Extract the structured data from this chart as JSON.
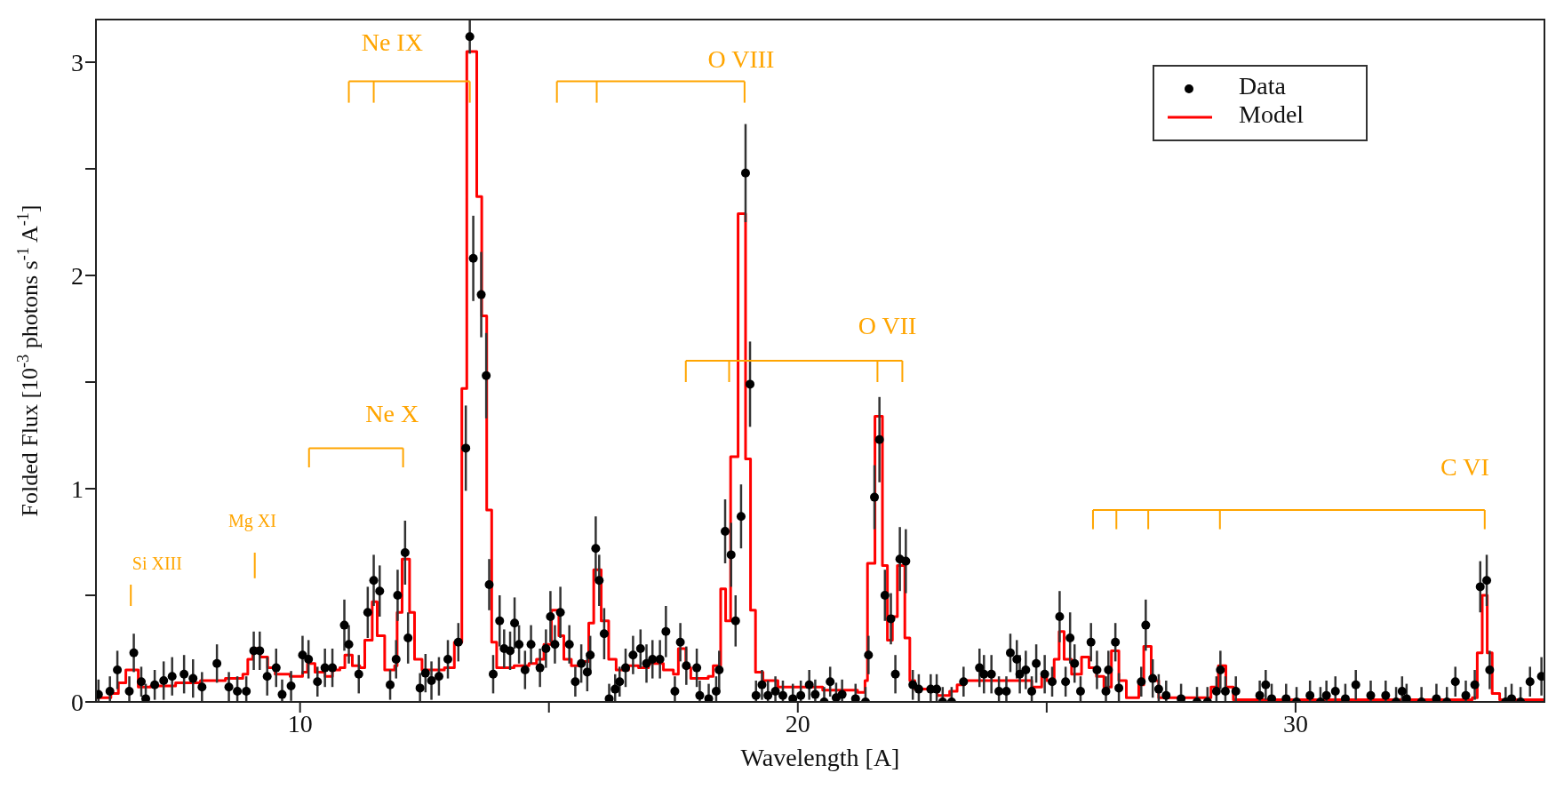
{
  "chart_data": {
    "type": "scatter",
    "xlabel": "Wavelength [A]",
    "ylabel": "Folded Flux [10$^{-3}$ photons s$^{-1}$ A$^{-1}$]",
    "xlim": [
      5.9,
      35
    ],
    "xticks": [
      10,
      {
        "value": 15,
        "label": null
      },
      20,
      {
        "value": 25,
        "label": null
      },
      30
    ],
    "ylim": [
      0,
      3.2
    ],
    "yticks": [
      0,
      {
        "value": 0.5,
        "label": null
      },
      1,
      {
        "value": 1.5,
        "label": null
      },
      2,
      {
        "value": 2.5,
        "label": null
      },
      3
    ],
    "legend": "top right",
    "annotations": [
      "Si XIII",
      "Mg XI",
      "Ne X",
      {
        "text": "Ne IX",
        "x": 13.41,
        "y": 2.91
      },
      "O VIII",
      "O VII",
      "C VI"
    ],
    "series": [
      {
        "name": "Data",
        "color": "#000000",
        "marker": "circle",
        "x": [
          5.95,
          6.18,
          6.33,
          6.57,
          6.66,
          6.81,
          6.9,
          7.08,
          7.26,
          7.43,
          7.67,
          7.85,
          8.03,
          8.33,
          8.57,
          8.74,
          8.92,
          9.07,
          9.19,
          9.34,
          9.52,
          9.64,
          9.82,
          10.05,
          10.17,
          10.35,
          10.5,
          10.65,
          10.89,
          10.98,
          11.18,
          11.36,
          11.48,
          11.6,
          11.81,
          11.93,
          11.96,
          12.11,
          12.17,
          12.41,
          12.52,
          12.64,
          12.79,
          12.97,
          13.18,
          13.33,
          13.41,
          13.48,
          13.64,
          13.74,
          13.8,
          13.88,
          14.01,
          14.1,
          14.22,
          14.31,
          14.4,
          14.52,
          14.64,
          14.82,
          14.94,
          15.03,
          15.12,
          15.23,
          15.41,
          15.53,
          15.65,
          15.77,
          15.83,
          15.94,
          16.01,
          16.11,
          16.21,
          16.33,
          16.42,
          16.54,
          16.69,
          16.84,
          16.96,
          17.08,
          17.23,
          17.35,
          17.53,
          17.64,
          17.76,
          17.97,
          18.03,
          18.21,
          18.36,
          18.42,
          18.54,
          18.66,
          18.75,
          18.86,
          18.95,
          19.04,
          19.16,
          19.28,
          19.4,
          19.55,
          19.7,
          19.9,
          20.06,
          20.23,
          20.35,
          20.53,
          20.65,
          20.77,
          20.89,
          21.16,
          21.36,
          21.42,
          21.54,
          21.64,
          21.75,
          21.87,
          21.96,
          22.05,
          22.17,
          22.31,
          22.43,
          22.67,
          22.79,
          22.91,
          23.09,
          23.33,
          23.65,
          23.74,
          23.89,
          24.04,
          24.19,
          24.27,
          24.4,
          24.46,
          24.58,
          24.7,
          24.79,
          24.96,
          25.11,
          25.26,
          25.38,
          25.47,
          25.56,
          25.68,
          25.89,
          26.01,
          26.19,
          26.24,
          26.38,
          26.45,
          26.9,
          26.99,
          27.13,
          27.25,
          27.4,
          27.7,
          28.02,
          28.23,
          28.41,
          28.49,
          28.59,
          28.8,
          29.28,
          29.4,
          29.52,
          29.81,
          30.02,
          30.29,
          30.5,
          30.62,
          30.8,
          31.0,
          31.21,
          31.51,
          31.81,
          32.02,
          32.14,
          32.23,
          32.53,
          32.83,
          33.04,
          33.21,
          33.42,
          33.6,
          33.71,
          33.84,
          33.9,
          34.22,
          34.34,
          34.52,
          34.71,
          34.94
        ],
        "values": [
          0.035,
          0.05,
          0.15,
          0.05,
          0.23,
          0.095,
          0.015,
          0.08,
          0.1,
          0.12,
          0.13,
          0.11,
          0.07,
          0.18,
          0.07,
          0.05,
          0.05,
          0.24,
          0.24,
          0.12,
          0.16,
          0.035,
          0.075,
          0.22,
          0.2,
          0.095,
          0.16,
          0.16,
          0.36,
          0.27,
          0.13,
          0.42,
          0.57,
          0.52,
          0.08,
          0.2,
          0.5,
          0.7,
          0.3,
          0.065,
          0.135,
          0.1,
          0.12,
          0.2,
          0.28,
          1.19,
          3.12,
          2.08,
          1.91,
          1.53,
          0.55,
          0.13,
          0.38,
          0.25,
          0.24,
          0.37,
          0.27,
          0.15,
          0.27,
          0.16,
          0.25,
          0.4,
          0.27,
          0.42,
          0.27,
          0.095,
          0.18,
          0.14,
          0.22,
          0.72,
          0.57,
          0.32,
          0.015,
          0.06,
          0.095,
          0.16,
          0.22,
          0.25,
          0.18,
          0.2,
          0.2,
          0.33,
          0.05,
          0.28,
          0.17,
          0.16,
          0.03,
          0.015,
          0.05,
          0.15,
          0.8,
          0.69,
          0.38,
          0.87,
          2.48,
          1.49,
          0.03,
          0.08,
          0.03,
          0.05,
          0.03,
          0.015,
          0.03,
          0.08,
          0.035,
          0,
          0.095,
          0.02,
          0.035,
          0.015,
          0,
          0.22,
          0.96,
          1.23,
          0.5,
          0.39,
          0.13,
          0.67,
          0.66,
          0.08,
          0.06,
          0.06,
          0.06,
          0,
          0,
          0.095,
          0.16,
          0.13,
          0.13,
          0.05,
          0.05,
          0.23,
          0.2,
          0.13,
          0.15,
          0.05,
          0.18,
          0.13,
          0.095,
          0.4,
          0.095,
          0.3,
          0.18,
          0.05,
          0.28,
          0.15,
          0.05,
          0.15,
          0.28,
          0.065,
          0.095,
          0.36,
          0.11,
          0.06,
          0.03,
          0.015,
          0,
          0,
          0.05,
          0.15,
          0.05,
          0.05,
          0.03,
          0.08,
          0.015,
          0.015,
          0,
          0.03,
          0,
          0.03,
          0.05,
          0.015,
          0.08,
          0.03,
          0.03,
          0,
          0.05,
          0.015,
          0,
          0.015,
          0,
          0.095,
          0.03,
          0.08,
          0.54,
          0.57,
          0.15,
          0,
          0.015,
          0,
          0.095,
          0.12
        ],
        "errors": [
          [
            0,
            0.105
          ],
          [
            0,
            0.12
          ],
          0.09,
          [
            0,
            0.12
          ],
          0.09,
          0.07,
          [
            0,
            0.085
          ],
          0.07,
          0.09,
          0.09,
          0.09,
          0.09,
          0.07,
          0.09,
          0.07,
          [
            0,
            0.12
          ],
          [
            0,
            0.12
          ],
          0.09,
          0.09,
          0.09,
          0.09,
          [
            0,
            0.105
          ],
          0.07,
          0.09,
          0.09,
          0.07,
          0.09,
          0.09,
          0.12,
          0.09,
          0.09,
          0.12,
          0.12,
          0.12,
          0.07,
          0.09,
          0.12,
          0.15,
          0.12,
          [
            0,
            0.135
          ],
          0.09,
          0.09,
          0.09,
          0.09,
          0.09,
          0.2,
          0.08,
          0.2,
          0.2,
          0.2,
          0.12,
          0.09,
          0.12,
          0.09,
          0.09,
          0.12,
          0.09,
          0.09,
          0.09,
          0.09,
          0.09,
          0.12,
          0.09,
          0.12,
          0.09,
          0.07,
          0.09,
          0.09,
          0.09,
          0.15,
          0.12,
          0.12,
          [
            0,
            0.085
          ],
          [
            0,
            0.13
          ],
          0.07,
          0.09,
          0.09,
          0.09,
          0.09,
          0.09,
          0.09,
          0.12,
          [
            0,
            0.12
          ],
          0.09,
          0.09,
          0.09,
          [
            0,
            0.1
          ],
          [
            0,
            0.085
          ],
          [
            0,
            0.12
          ],
          0.09,
          0.15,
          0.15,
          0.12,
          0.15,
          0.23,
          0.2,
          [
            0,
            0.1
          ],
          0.07,
          [
            0,
            0.1
          ],
          [
            0,
            0.12
          ],
          [
            0,
            0.1
          ],
          [
            0,
            0.085
          ],
          [
            0,
            0.1
          ],
          0.07,
          [
            0,
            0.105
          ],
          [
            0,
            0.07
          ],
          0.07,
          [
            0,
            0.09
          ],
          [
            0,
            0.105
          ],
          [
            0,
            0.085
          ],
          [
            0,
            0.07
          ],
          0.09,
          0.15,
          0.2,
          0.12,
          0.12,
          0.09,
          0.15,
          0.15,
          0.07,
          [
            0,
            0.13
          ],
          [
            0,
            0.13
          ],
          [
            0,
            0.13
          ],
          [
            0,
            0.07
          ],
          [
            0,
            0.07
          ],
          0.07,
          0.09,
          0.09,
          0.09,
          [
            0,
            0.12
          ],
          [
            0,
            0.12
          ],
          0.09,
          0.09,
          0.09,
          0.09,
          [
            0,
            0.12
          ],
          0.09,
          0.09,
          0.07,
          0.12,
          0.07,
          0.12,
          0.09,
          [
            0,
            0.12
          ],
          0.09,
          0.09,
          [
            0,
            0.12
          ],
          0.09,
          0.09,
          [
            0,
            0.135
          ],
          0.07,
          0.12,
          0.09,
          [
            0,
            0.13
          ],
          [
            0,
            0.1
          ],
          [
            0,
            0.085
          ],
          [
            0,
            0.07
          ],
          [
            0,
            0.07
          ],
          [
            0,
            0.12
          ],
          0.09,
          [
            0,
            0.12
          ],
          [
            0,
            0.12
          ],
          [
            0,
            0.1
          ],
          0.07,
          [
            0,
            0.085
          ],
          [
            0,
            0.085
          ],
          [
            0,
            0.07
          ],
          [
            0,
            0.1
          ],
          [
            0,
            0.07
          ],
          [
            0,
            0.1
          ],
          [
            0,
            0.12
          ],
          [
            0,
            0.085
          ],
          0.07,
          [
            0,
            0.1
          ],
          [
            0,
            0.1
          ],
          [
            0,
            0.07
          ],
          [
            0,
            0.12
          ],
          [
            0,
            0.085
          ],
          [
            0,
            0.07
          ],
          [
            0,
            0.085
          ],
          [
            0,
            0.07
          ],
          0.07,
          [
            0,
            0.1
          ],
          0.07,
          0.12,
          0.12,
          0.09,
          [
            0,
            0.07
          ],
          [
            0,
            0.085
          ],
          [
            0,
            0.07
          ],
          0.07,
          0.09
        ]
      },
      {
        "name": "Model",
        "type": "step",
        "color": "#ff0000",
        "marker": "none",
        "x": [
          5.9,
          6.2,
          6.35,
          6.5,
          6.75,
          7.0,
          7.5,
          8.0,
          8.5,
          8.85,
          8.95,
          9.05,
          9.2,
          9.35,
          9.5,
          9.8,
          10.05,
          10.15,
          10.3,
          10.5,
          10.65,
          10.8,
          10.9,
          11.05,
          11.2,
          11.3,
          11.45,
          11.55,
          11.7,
          11.9,
          11.95,
          12.05,
          12.2,
          12.3,
          12.45,
          12.9,
          13.1,
          13.25,
          13.35,
          13.55,
          13.65,
          13.75,
          13.85,
          13.95,
          14.3,
          14.6,
          14.75,
          14.9,
          15.05,
          15.2,
          15.3,
          15.45,
          15.65,
          15.8,
          15.9,
          16.05,
          16.2,
          16.35,
          16.6,
          16.8,
          17.0,
          17.3,
          17.5,
          17.6,
          17.75,
          17.85,
          18.2,
          18.3,
          18.45,
          18.55,
          18.65,
          18.8,
          18.95,
          19.05,
          19.15,
          19.3,
          19.6,
          20.5,
          21.2,
          21.35,
          21.4,
          21.55,
          21.7,
          21.8,
          21.9,
          22.0,
          22.15,
          22.25,
          22.35,
          22.8,
          23.05,
          23.2,
          23.35,
          24.7,
          24.9,
          25.0,
          25.15,
          25.25,
          25.35,
          25.5,
          25.7,
          25.85,
          26.0,
          26.15,
          26.3,
          26.45,
          26.6,
          26.85,
          26.95,
          27.1,
          27.25,
          28.3,
          28.45,
          28.6,
          28.75,
          33.55,
          33.65,
          33.75,
          33.85,
          33.95,
          34.1,
          35.0
        ],
        "values": [
          0.02,
          0.04,
          0.09,
          0.15,
          0.07,
          0.075,
          0.09,
          0.1,
          0.11,
          0.13,
          0.2,
          0.25,
          0.21,
          0.16,
          0.13,
          0.12,
          0.14,
          0.18,
          0.14,
          0.12,
          0.15,
          0.16,
          0.22,
          0.17,
          0.16,
          0.29,
          0.47,
          0.31,
          0.15,
          0.17,
          0.42,
          0.67,
          0.42,
          0.2,
          0.15,
          0.16,
          0.28,
          1.47,
          3.05,
          2.37,
          1.81,
          0.9,
          0.28,
          0.16,
          0.17,
          0.18,
          0.2,
          0.27,
          0.43,
          0.31,
          0.2,
          0.17,
          0.19,
          0.37,
          0.62,
          0.38,
          0.2,
          0.15,
          0.17,
          0.16,
          0.18,
          0.15,
          0.13,
          0.25,
          0.16,
          0.11,
          0.12,
          0.17,
          0.53,
          0.38,
          1.15,
          2.29,
          1.14,
          0.43,
          0.14,
          0.1,
          0.07,
          0.055,
          0.045,
          0.1,
          0.65,
          1.34,
          0.64,
          0.29,
          0.4,
          0.64,
          0.3,
          0.1,
          0.06,
          0.03,
          0.05,
          0.08,
          0.1,
          0.07,
          0.12,
          0.1,
          0.2,
          0.33,
          0.2,
          0.13,
          0.21,
          0.16,
          0.12,
          0.07,
          0.24,
          0.1,
          0.02,
          0.08,
          0.26,
          0.1,
          0.02,
          0.07,
          0.17,
          0.07,
          0.01,
          0.02,
          0.23,
          0.5,
          0.23,
          0.04,
          0.01,
          0.01
        ]
      }
    ]
  }
}
